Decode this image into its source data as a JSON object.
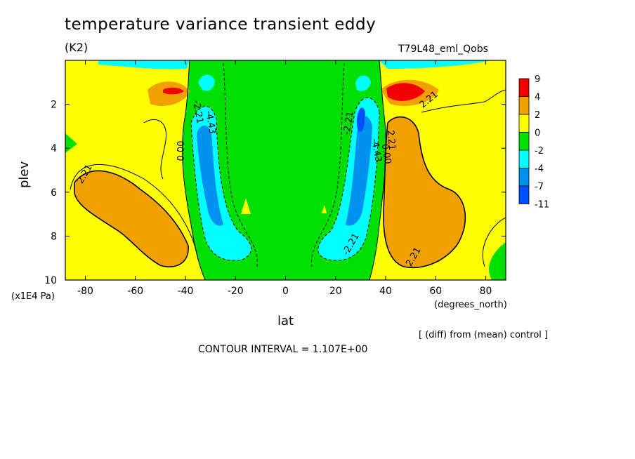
{
  "title": "temperature variance transient eddy",
  "units": "(K2)",
  "run_label": "T79L48_eml_Qobs",
  "x_units": "(degrees_north)",
  "y_scale": "(x1E4 Pa)",
  "diff_note": "[ (diff) from (mean) control ]",
  "contour_note": "CONTOUR INTERVAL = 1.107E+00",
  "chart_data": {
    "type": "contour",
    "xlabel": "lat",
    "ylabel": "plev",
    "xlim": [
      -88,
      88
    ],
    "ylim": [
      10,
      0
    ],
    "x_ticks": [
      "-80",
      "-60",
      "-40",
      "-20",
      "0",
      "20",
      "40",
      "60",
      "80"
    ],
    "y_ticks": [
      "2",
      "4",
      "6",
      "8",
      "10"
    ],
    "colorbar": {
      "labels": [
        "9",
        "4",
        "2",
        "0",
        "-2",
        "-4",
        "-7",
        "-11"
      ],
      "colors": [
        "#f00000",
        "#f0a000",
        "#ffff00",
        "#00e000",
        "#00ffff",
        "#0092f0",
        "#0050ff"
      ]
    },
    "contour_labels": [
      "2.21",
      "-2.21",
      "-4.43",
      "0.00"
    ],
    "background_color": "#00e000"
  }
}
